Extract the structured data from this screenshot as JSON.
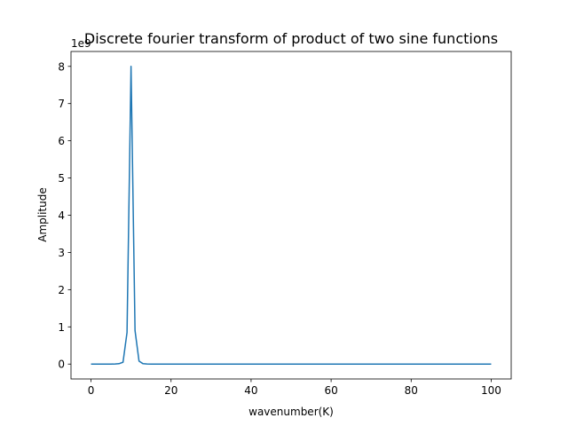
{
  "chart_data": {
    "type": "line",
    "title": "Discrete fourier transform of product of two sine functions",
    "xlabel": "wavenumber(K)",
    "ylabel": "Amplitude",
    "y_offset_label": "1e9",
    "xlim": [
      -5,
      105
    ],
    "ylim": [
      -0.4,
      8.4
    ],
    "y_scale_factor": 1000000000,
    "x_ticks": [
      0,
      20,
      40,
      60,
      80,
      100
    ],
    "y_ticks": [
      0,
      1,
      2,
      3,
      4,
      5,
      6,
      7,
      8
    ],
    "grid": false,
    "series": [
      {
        "color": "#1f77b4",
        "x": [
          0,
          1,
          2,
          3,
          4,
          5,
          6,
          7,
          8,
          9,
          10,
          11,
          12,
          13,
          14,
          15,
          20,
          30,
          40,
          50,
          60,
          70,
          80,
          90,
          100
        ],
        "y": [
          0,
          0,
          0,
          0,
          0,
          0,
          0.002,
          0.01,
          0.05,
          0.85,
          8.0,
          0.9,
          0.08,
          0.01,
          0.002,
          0,
          0,
          0,
          0,
          0,
          0,
          0,
          0,
          0,
          0
        ]
      }
    ]
  }
}
